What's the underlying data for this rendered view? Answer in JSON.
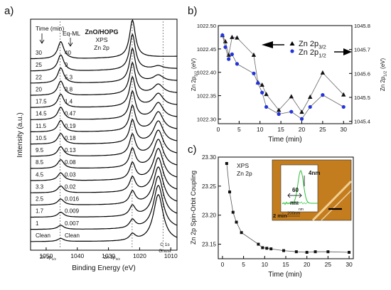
{
  "chart_data": [
    {
      "panel": "a)",
      "type": "line",
      "sample": "ZnO/HOPG",
      "technique": "XPS",
      "line": "Zn 2p",
      "xlabel": "Binding Energy (eV)",
      "ylabel": "Intensity (a.u.)",
      "xlim": [
        1055,
        1008
      ],
      "x_ticks": [
        1050,
        1040,
        1030,
        1020,
        1010
      ],
      "col_time_header": "Time (min)",
      "col_eq_header": "Eq-ML",
      "spectra": [
        {
          "time": "30",
          "eq_ml": "40"
        },
        {
          "time": "25",
          "eq_ml": "9"
        },
        {
          "time": "22",
          "eq_ml": "5.3"
        },
        {
          "time": "20",
          "eq_ml": "3.8"
        },
        {
          "time": "17.5",
          "eq_ml": "1.4"
        },
        {
          "time": "14.5",
          "eq_ml": "0.47"
        },
        {
          "time": "11.5",
          "eq_ml": "0.19"
        },
        {
          "time": "10.5",
          "eq_ml": "0.18"
        },
        {
          "time": "9.5",
          "eq_ml": "0.13"
        },
        {
          "time": "8.5",
          "eq_ml": "0.08"
        },
        {
          "time": "4.5",
          "eq_ml": "0.03"
        },
        {
          "time": "3.3",
          "eq_ml": "0.02"
        },
        {
          "time": "2.5",
          "eq_ml": "0.016"
        },
        {
          "time": "1.7",
          "eq_ml": "0.009"
        },
        {
          "time": "1",
          "eq_ml": "0.007"
        },
        {
          "time": "Clean",
          "eq_ml": "Clean"
        }
      ],
      "peaks": [
        {
          "label": "Zn 2p1/2",
          "main": "Zn 2p",
          "sub": "1/2",
          "x": 1045.5
        },
        {
          "label": "Zn 2p3/2",
          "main": "Zn 2p",
          "sub": "3/2",
          "x": 1022.4
        },
        {
          "label": "C 1s Ghost",
          "main": "C 1s",
          "second": "Ghost",
          "x": 1012.5
        }
      ]
    },
    {
      "panel": "b)",
      "type": "line",
      "xlabel": "Time (min)",
      "ylabel_left": "Zn 2p3/2 (eV)",
      "ylabel_left_main": "Zn 2p",
      "ylabel_left_sub": "3/2",
      "ylabel_left_unit": "(eV)",
      "ylabel_right": "Zn 2p1/2 (eV)",
      "ylabel_right_main": "Zn 2p",
      "ylabel_right_sub": "1/2",
      "ylabel_right_unit": "(eV)",
      "xlim": [
        0,
        32
      ],
      "x_ticks": [
        0,
        5,
        10,
        15,
        20,
        25,
        30
      ],
      "ylim_left": [
        1022.29,
        1022.5
      ],
      "y_ticks_left": [
        "1022.50",
        "1022.45",
        "1022.40",
        "1022.35",
        "1022.30"
      ],
      "ylim_right": [
        1045.39,
        1045.8
      ],
      "y_ticks_right": [
        "1045.8",
        "1045.7",
        "1045.6",
        "1045.5",
        "1045.4"
      ],
      "legend": "top-right",
      "series": [
        {
          "name": "Zn 2p3/2",
          "name_main": "Zn 2p",
          "name_sub": "3/2",
          "axis": "left",
          "marker": "triangle",
          "color": "#111111",
          "x": [
            1,
            1.7,
            2.5,
            3.3,
            4.5,
            8.5,
            9.5,
            10.5,
            11.5,
            14.5,
            17.5,
            20,
            22,
            25,
            30
          ],
          "y": [
            1022.479,
            1022.466,
            1022.437,
            1022.475,
            1022.474,
            1022.437,
            1022.378,
            1022.373,
            1022.353,
            1022.319,
            1022.348,
            1022.315,
            1022.347,
            1022.399,
            1022.352
          ]
        },
        {
          "name": "Zn 2p1/2",
          "name_main": "Zn 2p",
          "name_sub": "1/2",
          "axis": "right",
          "marker": "circle",
          "color": "#2233dd",
          "x": [
            1,
            1.7,
            2.5,
            3.3,
            4.5,
            8.5,
            9.5,
            10.5,
            11.5,
            14.5,
            17.5,
            20,
            22,
            25,
            30
          ],
          "y": [
            1045.76,
            1045.71,
            1045.66,
            1045.68,
            1045.64,
            1045.6,
            1045.56,
            1045.52,
            1045.46,
            1045.43,
            1045.44,
            1045.41,
            1045.46,
            1045.51,
            1045.46
          ]
        }
      ]
    },
    {
      "panel": "c)",
      "type": "scatter",
      "xlabel": "Time (min)",
      "ylabel": "Zn 2p Spin-Orbit Coupling",
      "annotation_line1": "XPS",
      "annotation_line2": "Zn 2p",
      "xlim": [
        -1,
        31
      ],
      "x_ticks": [
        0,
        5,
        10,
        15,
        20,
        25,
        30
      ],
      "ylim": [
        23.125,
        23.3
      ],
      "y_ticks": [
        "23.30",
        "23.25",
        "23.20",
        "23.15"
      ],
      "series": [
        {
          "marker": "square",
          "color": "#111111",
          "x": [
            1,
            1.7,
            2.5,
            3.3,
            4.5,
            8.5,
            9.5,
            10.5,
            11.5,
            14.5,
            17.5,
            20,
            22,
            25,
            30
          ],
          "y": [
            23.289,
            23.24,
            23.205,
            23.188,
            23.17,
            23.15,
            23.144,
            23.143,
            23.142,
            23.139,
            23.137,
            23.136,
            23.137,
            23.137,
            23.136
          ]
        }
      ],
      "inset": {
        "label_height": "4nm",
        "label_width": "60",
        "label_width_unit": "nm",
        "label_time": "2 min",
        "axis_unit": "nm",
        "scale_bar": "200nm",
        "colors": {
          "background": "#c47d1e",
          "profile": "#2fbf3a"
        }
      }
    }
  ]
}
